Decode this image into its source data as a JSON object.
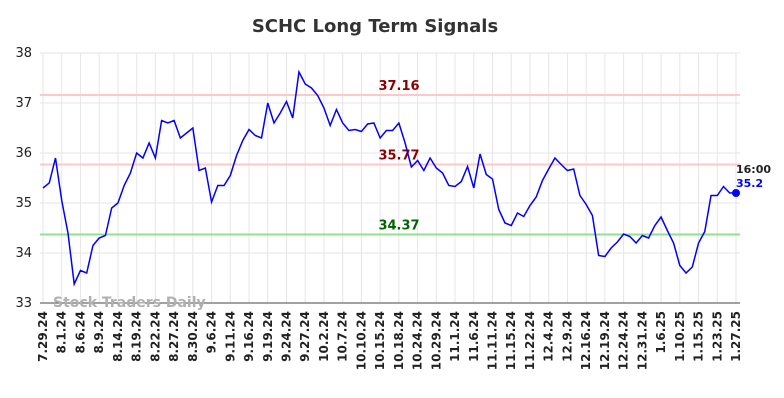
{
  "chart_data": {
    "type": "line",
    "title": "SCHC Long Term Signals",
    "watermark": "Stock Traders Daily",
    "categories": [
      "7.29.24",
      null,
      null,
      "8.1.24",
      null,
      null,
      "8.6.24",
      null,
      null,
      "8.9.24",
      null,
      null,
      "8.14.24",
      null,
      null,
      "8.19.24",
      null,
      null,
      "8.22.24",
      null,
      null,
      "8.27.24",
      null,
      null,
      "8.30.24",
      null,
      null,
      "9.6.24",
      null,
      null,
      "9.11.24",
      null,
      null,
      "9.16.24",
      null,
      null,
      "9.19.24",
      null,
      null,
      "9.24.24",
      null,
      null,
      "9.27.24",
      null,
      null,
      "10.2.24",
      null,
      null,
      "10.7.24",
      null,
      null,
      "10.10.24",
      null,
      null,
      "10.15.24",
      null,
      null,
      "10.18.24",
      null,
      null,
      "10.24.24",
      null,
      null,
      "10.29.24",
      null,
      null,
      "11.1.24",
      null,
      null,
      "11.6.24",
      null,
      null,
      "11.11.24",
      null,
      null,
      "11.15.24",
      null,
      null,
      "11.22.24",
      null,
      null,
      "12.4.24",
      null,
      null,
      "12.9.24",
      null,
      null,
      "12.16.24",
      null,
      null,
      "12.19.24",
      null,
      null,
      "12.24.24",
      null,
      null,
      "12.31.24",
      null,
      null,
      "1.6.25",
      null,
      null,
      "1.10.25",
      null,
      null,
      "1.15.25",
      null,
      null,
      "1.23.25",
      null,
      null,
      "1.27.25"
    ],
    "series": [
      {
        "name": "SCHC",
        "color": "#0000ff",
        "values": [
          35.3,
          35.4,
          35.9,
          35.05,
          34.4,
          33.38,
          33.65,
          33.6,
          34.15,
          34.3,
          34.35,
          34.9,
          35.0,
          35.35,
          35.6,
          36.0,
          35.9,
          36.2,
          35.9,
          36.65,
          36.6,
          36.65,
          36.3,
          36.4,
          36.5,
          35.65,
          35.7,
          35.02,
          35.35,
          35.35,
          35.55,
          35.95,
          36.25,
          36.47,
          36.35,
          36.3,
          37.0,
          36.6,
          36.8,
          37.03,
          36.7,
          37.62,
          37.38,
          37.3,
          37.15,
          36.9,
          36.55,
          36.87,
          36.6,
          36.45,
          36.47,
          36.43,
          36.58,
          36.6,
          36.3,
          36.45,
          36.45,
          36.6,
          36.2,
          35.72,
          35.85,
          35.65,
          35.9,
          35.7,
          35.6,
          35.35,
          35.33,
          35.43,
          35.73,
          35.3,
          35.98,
          35.57,
          35.48,
          34.87,
          34.6,
          34.55,
          34.8,
          34.73,
          34.95,
          35.12,
          35.45,
          35.68,
          35.9,
          35.77,
          35.65,
          35.68,
          35.15,
          34.97,
          34.75,
          33.95,
          33.93,
          34.1,
          34.22,
          34.38,
          34.33,
          34.2,
          34.35,
          34.3,
          34.55,
          34.72,
          34.45,
          34.2,
          33.75,
          33.6,
          33.72,
          34.2,
          34.43,
          35.15,
          35.15,
          35.33,
          35.2,
          35.2
        ]
      }
    ],
    "signals": [
      {
        "value": 37.16,
        "color": "#ffc8c8",
        "label_color": "#8b0000"
      },
      {
        "value": 35.77,
        "color": "#ffc8c8",
        "label_color": "#8b0000"
      },
      {
        "value": 34.37,
        "color": "#90e090",
        "label_color": "#006400"
      }
    ],
    "last_point": {
      "time": "16:00",
      "value": 35.2,
      "color": "#0000ff"
    },
    "ylim": [
      33,
      38
    ],
    "yticks": [
      33,
      34,
      35,
      36,
      37,
      38
    ],
    "grid": true
  }
}
